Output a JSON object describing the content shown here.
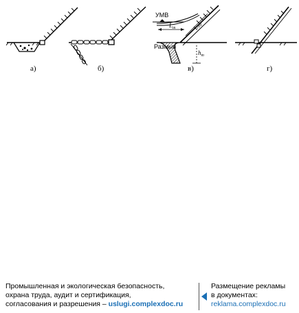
{
  "diagram": {
    "sublabels": [
      "а)",
      "б)",
      "в)",
      "г)"
    ],
    "annotations": {
      "umv": "УМВ",
      "erosion": "Размыв",
      "lt": "L",
      "lt_sub": "т",
      "lmp": "L",
      "lmp_sub": "тр",
      "h": "h",
      "h_sub": "т"
    }
  },
  "footer": {
    "left_line1": "Промышленная и экологическая безопасность,",
    "left_line2": "охрана труда, аудит и сертификация,",
    "left_line3_prefix": "согласования и разрешения – ",
    "left_url": "uslugi.complexdoc.ru",
    "right_line1": "Размещение рекламы",
    "right_line2": "в документах:",
    "right_url": "reklama.complexdoc.ru"
  },
  "colors": {
    "ink": "#000000",
    "link": "#1a6fb5"
  }
}
